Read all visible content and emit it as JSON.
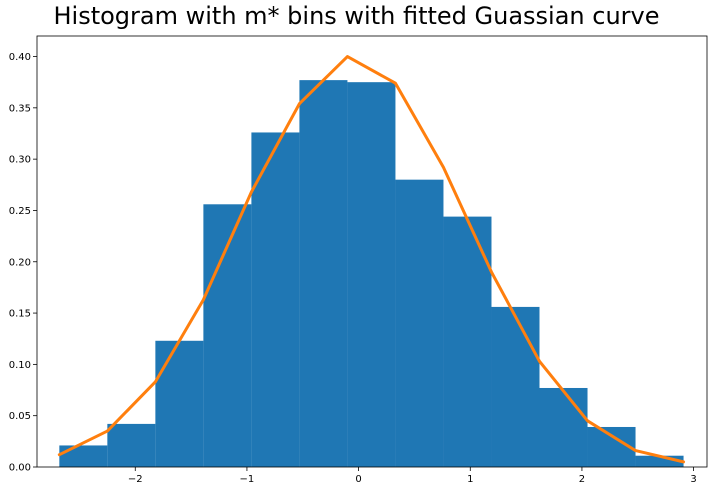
{
  "chart_data": {
    "type": "bar",
    "title": "Histogram with m* bins with fitted Guassian curve",
    "xlabel": "",
    "ylabel": "",
    "xlim": [
      -2.88,
      3.12
    ],
    "ylim": [
      0.0,
      0.42
    ],
    "bin_edges": [
      -2.68,
      -2.25,
      -1.82,
      -1.39,
      -0.96,
      -0.53,
      -0.1,
      0.33,
      0.76,
      1.19,
      1.62,
      2.05,
      2.48,
      2.91
    ],
    "bin_heights": [
      0.021,
      0.042,
      0.123,
      0.256,
      0.326,
      0.377,
      0.375,
      0.28,
      0.244,
      0.156,
      0.077,
      0.039,
      0.011
    ],
    "curve": {
      "x": [
        -2.68,
        -2.25,
        -1.82,
        -1.39,
        -0.96,
        -0.53,
        -0.1,
        0.33,
        0.76,
        1.19,
        1.62,
        2.05,
        2.48,
        2.91
      ],
      "y": [
        0.012,
        0.035,
        0.083,
        0.163,
        0.268,
        0.354,
        0.4,
        0.374,
        0.292,
        0.19,
        0.103,
        0.045,
        0.016,
        0.005
      ]
    },
    "x_ticks": [
      -2,
      -1,
      0,
      1,
      2,
      3
    ],
    "x_tick_labels": [
      "−2",
      "−1",
      "0",
      "1",
      "2",
      "3"
    ],
    "y_ticks": [
      0.0,
      0.05,
      0.1,
      0.15,
      0.2,
      0.25,
      0.3,
      0.35,
      0.4
    ],
    "y_tick_labels": [
      "0.00",
      "0.05",
      "0.10",
      "0.15",
      "0.20",
      "0.25",
      "0.30",
      "0.35",
      "0.40"
    ],
    "colors": {
      "bars": "#1f77b4",
      "curve": "#ff7f0e"
    },
    "grid": false,
    "legend": "none"
  }
}
